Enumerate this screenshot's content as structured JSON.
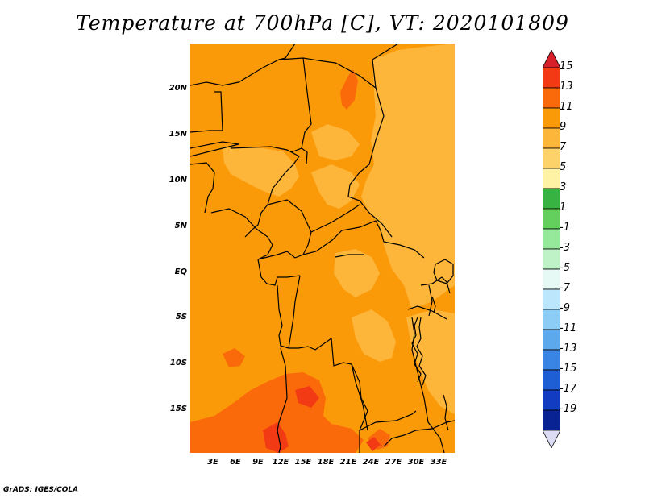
{
  "title": "Temperature at 700hPa [C], VT: 2020101809",
  "credit": "GrADS: IGES/COLA",
  "y_axis": [
    "20N",
    "15N",
    "10N",
    "5N",
    "EQ",
    "5S",
    "10S",
    "15S"
  ],
  "x_axis": [
    "3E",
    "6E",
    "9E",
    "12E",
    "15E",
    "18E",
    "21E",
    "24E",
    "27E",
    "30E",
    "33E"
  ],
  "colorbar": {
    "labels": [
      "15",
      "13",
      "11",
      "9",
      "7",
      "5",
      "3",
      "1",
      "-1",
      "-3",
      "-5",
      "-7",
      "-9",
      "-11",
      "-13",
      "-15",
      "-17",
      "-19"
    ],
    "colors": [
      "#d8202a",
      "#f23a14",
      "#fa6a0a",
      "#fb9a08",
      "#fdb53a",
      "#fdd269",
      "#fef3a4",
      "#37b341",
      "#63d05e",
      "#96e89a",
      "#bff2c6",
      "#e6f9f5",
      "#bce6fb",
      "#8ccdf6",
      "#5caaed",
      "#3985e6",
      "#1e5fd6",
      "#123dc2",
      "#0a2394",
      "#050d4c"
    ],
    "top_triangle": "#d8202a",
    "bottom_triangle": "#dcdcf5"
  },
  "legend": {
    "map_background": "#fb9a08",
    "warm_patch": "#fa6a0a",
    "hot_patch": "#f23a14",
    "cool_patch": "#fdb53a"
  }
}
